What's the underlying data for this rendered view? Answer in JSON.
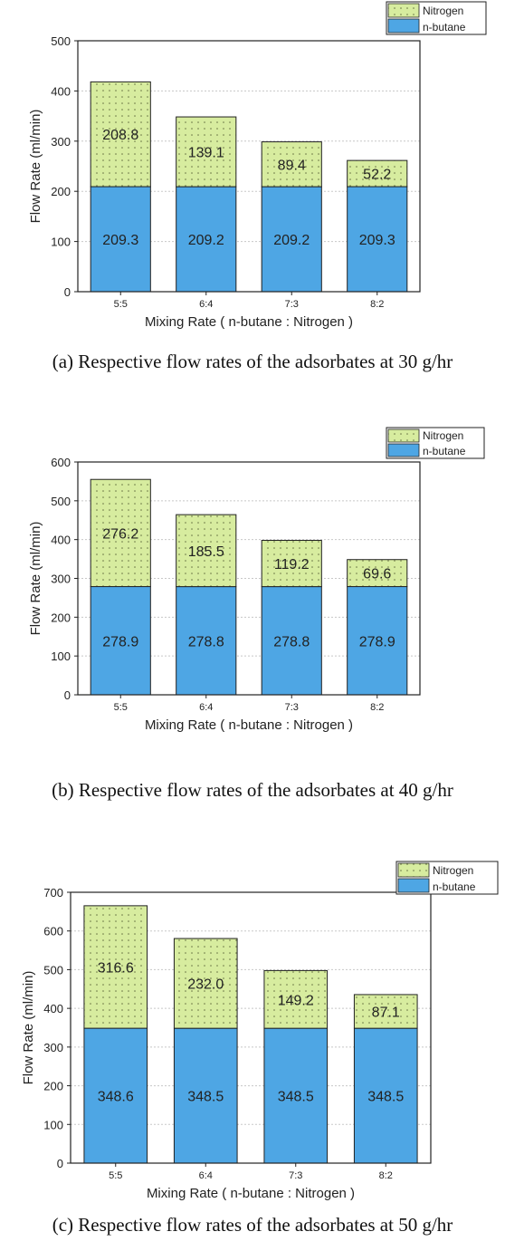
{
  "chart_data": [
    {
      "type": "bar",
      "stacked": true,
      "caption": "(a) Respective flow rates of the adsorbates at 30 g/hr",
      "categories": [
        "5:5",
        "6:4",
        "7:3",
        "8:2"
      ],
      "series": [
        {
          "name": "n-butane",
          "values": [
            209.3,
            209.2,
            209.2,
            209.3
          ],
          "labels": [
            "209.3",
            "209.2",
            "209.2",
            "209.3"
          ]
        },
        {
          "name": "Nitrogen",
          "values": [
            208.8,
            139.1,
            89.4,
            52.2
          ],
          "labels": [
            "208.8",
            "139.1",
            "89.4",
            "52.2"
          ]
        }
      ],
      "xlabel": "Mixing Rate ( n-butane : Nitrogen )",
      "ylabel": "Flow Rate (ml/min)",
      "ylim": [
        0,
        500
      ],
      "yticks": [
        "0",
        "100",
        "200",
        "300",
        "400",
        "500"
      ],
      "grid": true,
      "legend": "top-right, outside"
    },
    {
      "type": "bar",
      "stacked": true,
      "caption": "(b) Respective flow rates of the adsorbates at 40 g/hr",
      "categories": [
        "5:5",
        "6:4",
        "7:3",
        "8:2"
      ],
      "series": [
        {
          "name": "n-butane",
          "values": [
            278.9,
            278.8,
            278.8,
            278.9
          ],
          "labels": [
            "278.9",
            "278.8",
            "278.8",
            "278.9"
          ]
        },
        {
          "name": "Nitrogen",
          "values": [
            276.2,
            185.5,
            119.2,
            69.6
          ],
          "labels": [
            "276.2",
            "185.5",
            "119.2",
            "69.6"
          ]
        }
      ],
      "xlabel": "Mixing Rate ( n-butane : Nitrogen )",
      "ylabel": "Flow Rate (ml/min)",
      "ylim": [
        0,
        600
      ],
      "yticks": [
        "0",
        "100",
        "200",
        "300",
        "400",
        "500",
        "600"
      ],
      "grid": true,
      "legend": "top-right, outside"
    },
    {
      "type": "bar",
      "stacked": true,
      "caption": "(c) Respective flow rates of the adsorbates at 50 g/hr",
      "categories": [
        "5:5",
        "6:4",
        "7:3",
        "8:2"
      ],
      "series": [
        {
          "name": "n-butane",
          "values": [
            348.6,
            348.5,
            348.5,
            348.5
          ],
          "labels": [
            "348.6",
            "348.5",
            "348.5",
            "348.5"
          ]
        },
        {
          "name": "Nitrogen",
          "values": [
            316.6,
            232.0,
            149.2,
            87.1
          ],
          "labels": [
            "316.6",
            "232.0",
            "149.2",
            "87.1"
          ]
        }
      ],
      "xlabel": "Mixing Rate ( n-butane : Nitrogen )",
      "ylabel": "Flow Rate (ml/min)",
      "ylim": [
        0,
        700
      ],
      "yticks": [
        "0",
        "100",
        "200",
        "300",
        "400",
        "500",
        "600",
        "700"
      ],
      "grid": true,
      "legend": "top-right, outside"
    }
  ],
  "colors": {
    "n_butane": "#4ea6e4",
    "nitrogen": "#d7ec9f",
    "nitrogen_dots": "#5f6b3c",
    "grid": "#c8c8c8",
    "frame": "#222222"
  }
}
